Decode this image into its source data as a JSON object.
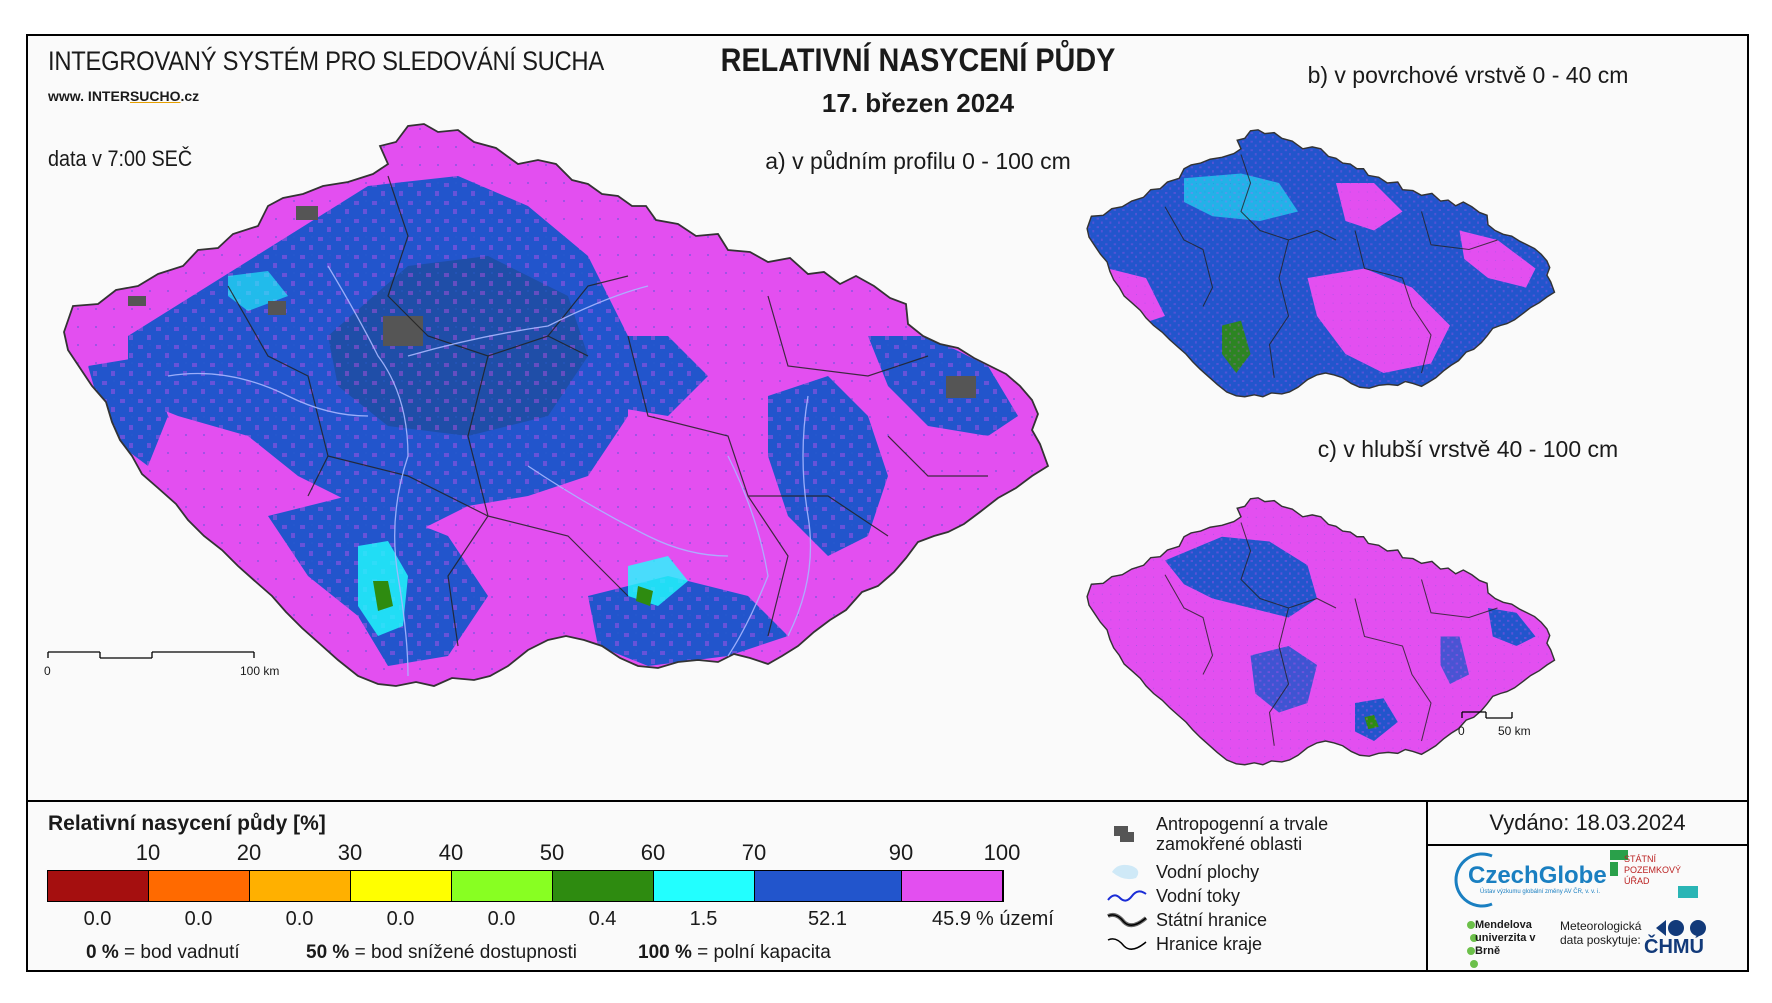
{
  "header": {
    "system": "INTEGROVANÝ SYSTÉM PRO SLEDOVÁNÍ SUCHA",
    "web_prefix": "www. INTER",
    "web_accent": "SUCHO",
    "web_suffix": ".cz",
    "time": "data v 7:00 SEČ",
    "title": "RELATIVNÍ NASYCENÍ PŮDY",
    "date": "17. březen 2024"
  },
  "maps": {
    "a_label": "a) v půdním profilu 0 - 100 cm",
    "b_label": "b) v povrchové vrstvě 0 - 40 cm",
    "c_label": "c) v hlubší vrstvě 40 - 100 cm",
    "scale_main": {
      "start": "0",
      "end": "100 km"
    },
    "scale_small": {
      "start": "0",
      "end": "50 km"
    }
  },
  "legend": {
    "title": "Relativní nasycení půdy [%]",
    "ticks": [
      "10",
      "20",
      "30",
      "40",
      "50",
      "60",
      "70",
      "90",
      "100"
    ],
    "classes": [
      {
        "color": "#a50f0f",
        "percent": "0.0"
      },
      {
        "color": "#ff6a00",
        "percent": "0.0"
      },
      {
        "color": "#ffb000",
        "percent": "0.0"
      },
      {
        "color": "#ffff00",
        "percent": "0.0"
      },
      {
        "color": "#88ff22",
        "percent": "0.0"
      },
      {
        "color": "#2e8b10",
        "percent": "0.4"
      },
      {
        "color": "#22ffff",
        "percent": "1.5"
      },
      {
        "color": "#2255cc",
        "percent": "52.1"
      },
      {
        "color": "#e34ff0",
        "percent": "45.9"
      }
    ],
    "unit": "% území",
    "notes": [
      {
        "value": "0 %",
        "text": "= bod vadnutí"
      },
      {
        "value": "50 %",
        "text": "= bod snížené dostupnosti"
      },
      {
        "value": "100 %",
        "text": "= polní kapacita"
      }
    ]
  },
  "symbols": [
    {
      "icon": "urban-area-icon",
      "label": "Antropogenní a trvale zamokřené oblasti"
    },
    {
      "icon": "water-body-icon",
      "label": "Vodní plochy"
    },
    {
      "icon": "river-icon",
      "label": "Vodní toky"
    },
    {
      "icon": "state-border-icon",
      "label": "Státní hranice"
    },
    {
      "icon": "region-border-icon",
      "label": "Hranice kraje"
    }
  ],
  "footer": {
    "issued": "Vydáno: 18.03.2024",
    "czechglobe": "CzechGlobe",
    "czechglobe_sub": "Ústav výzkumu globální změny AV ČR, v. v. i.",
    "spu": "STÁTNÍ POZEMKOVÝ ÚŘAD",
    "mendel": "Mendelova univerzita v Brně",
    "meteo": "Meteorologická data poskytuje:",
    "chmu": "ČHMÚ"
  }
}
